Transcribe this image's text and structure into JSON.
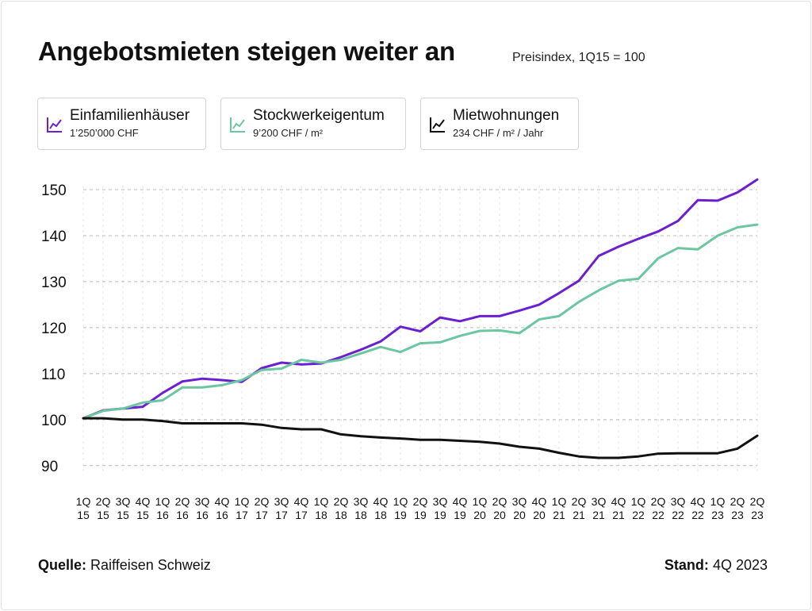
{
  "title": "Angebotsmieten steigen weiter an",
  "subtitle": "Preisindex, 1Q15 = 100",
  "legend": [
    {
      "name": "Einfamilienhäuser",
      "sub": "1’250’000 CHF",
      "color": "#6a1fd1"
    },
    {
      "name": "Stockwerkeigentum",
      "sub": "9’200 CHF / m²",
      "color": "#6cc7a1"
    },
    {
      "name": "Mietwohnungen",
      "sub": "234 CHF / m² / Jahr",
      "color": "#111111"
    }
  ],
  "footer": {
    "source_label": "Quelle:",
    "source_value": "Raiffeisen Schweiz",
    "as_of_label": "Stand:",
    "as_of_value": "4Q 2023"
  },
  "chart_data": {
    "type": "line",
    "title": "Angebotsmieten steigen weiter an",
    "subtitle": "Preisindex, 1Q15 = 100",
    "xlabel": "",
    "ylabel": "",
    "ylim": [
      86,
      155
    ],
    "yticks": [
      90,
      100,
      110,
      120,
      130,
      140,
      150
    ],
    "grid": true,
    "legend_position": "top",
    "categories": [
      [
        "1Q",
        "15"
      ],
      [
        "2Q",
        "15"
      ],
      [
        "3Q",
        "15"
      ],
      [
        "4Q",
        "15"
      ],
      [
        "1Q",
        "16"
      ],
      [
        "2Q",
        "16"
      ],
      [
        "3Q",
        "16"
      ],
      [
        "4Q",
        "16"
      ],
      [
        "1Q",
        "17"
      ],
      [
        "2Q",
        "17"
      ],
      [
        "3Q",
        "17"
      ],
      [
        "4Q",
        "17"
      ],
      [
        "1Q",
        "18"
      ],
      [
        "2Q",
        "18"
      ],
      [
        "3Q",
        "18"
      ],
      [
        "4Q",
        "18"
      ],
      [
        "1Q",
        "19"
      ],
      [
        "2Q",
        "19"
      ],
      [
        "3Q",
        "19"
      ],
      [
        "4Q",
        "19"
      ],
      [
        "1Q",
        "20"
      ],
      [
        "2Q",
        "20"
      ],
      [
        "3Q",
        "20"
      ],
      [
        "4Q",
        "20"
      ],
      [
        "1Q",
        "21"
      ],
      [
        "2Q",
        "21"
      ],
      [
        "3Q",
        "21"
      ],
      [
        "4Q",
        "21"
      ],
      [
        "1Q",
        "22"
      ],
      [
        "2Q",
        "22"
      ],
      [
        "3Q",
        "22"
      ],
      [
        "4Q",
        "22"
      ],
      [
        "1Q",
        "23"
      ],
      [
        "2Q",
        "23"
      ],
      [
        "2Q",
        "23"
      ]
    ],
    "series": [
      {
        "name": "Einfamilienhäuser",
        "color": "#6a1fd1",
        "values": [
          100.3,
          102.0,
          102.4,
          102.8,
          105.8,
          108.3,
          108.9,
          108.6,
          108.2,
          111.2,
          112.4,
          112.0,
          112.2,
          113.6,
          115.2,
          117.0,
          120.2,
          119.2,
          122.2,
          121.4,
          122.5,
          122.5,
          123.7,
          125.0,
          127.5,
          130.2,
          135.6,
          137.6,
          139.3,
          140.9,
          143.2,
          147.7,
          147.6,
          149.4,
          152.2
        ]
      },
      {
        "name": "Stockwerkeigentum",
        "color": "#6cc7a1",
        "values": [
          100.3,
          101.9,
          102.4,
          103.7,
          104.2,
          107.0,
          107.0,
          107.5,
          108.6,
          110.8,
          111.1,
          113.0,
          112.4,
          113.0,
          114.4,
          115.8,
          114.7,
          116.6,
          116.8,
          118.2,
          119.3,
          119.4,
          118.8,
          121.8,
          122.5,
          125.6,
          128.1,
          130.2,
          130.6,
          135.1,
          137.3,
          137.0,
          140.0,
          141.8,
          142.4
        ]
      },
      {
        "name": "Mietwohnungen",
        "color": "#111111",
        "values": [
          100.3,
          100.3,
          100.0,
          100.0,
          99.7,
          99.2,
          99.2,
          99.2,
          99.2,
          98.9,
          98.2,
          97.9,
          97.9,
          96.8,
          96.4,
          96.1,
          95.9,
          95.6,
          95.6,
          95.4,
          95.2,
          94.8,
          94.1,
          93.7,
          92.8,
          92.0,
          91.7,
          91.7,
          92.0,
          92.6,
          92.7,
          92.7,
          92.7,
          93.7,
          96.5
        ]
      }
    ]
  }
}
